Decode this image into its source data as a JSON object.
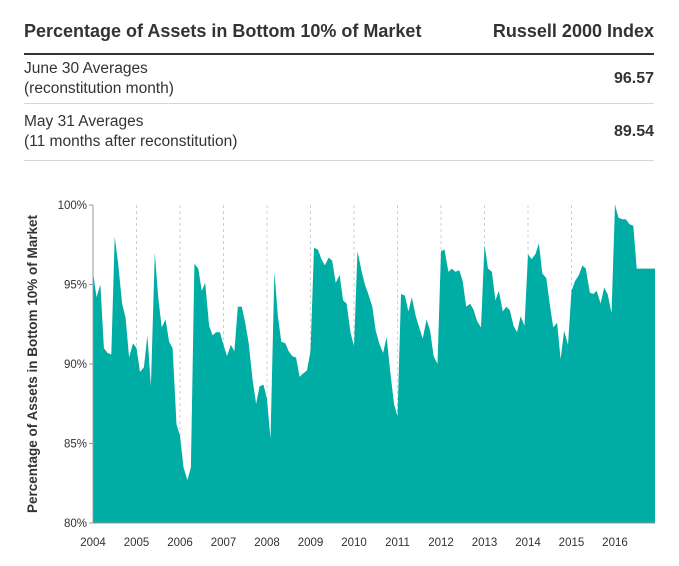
{
  "table": {
    "header_left": "Percentage of Assets in Bottom 10% of Market",
    "header_right": "Russell 2000 Index",
    "rows": [
      {
        "line1": "June 30 Averages",
        "line2": "(reconstitution month)",
        "value": "96.57"
      },
      {
        "line1": "May 31 Averages",
        "line2": "(11 months after reconstitution)",
        "value": "89.54"
      }
    ]
  },
  "colors": {
    "area": "#00ada4",
    "grid": "#d0d0d0",
    "axis": "#999999"
  },
  "chart_data": {
    "type": "area",
    "ylabel": "Percentage of Assets in Bottom 10% of Market",
    "xlabel": "",
    "ylim": [
      80,
      100
    ],
    "xlim": [
      2004.0,
      2016.92
    ],
    "yticks": [
      80,
      85,
      90,
      95,
      100
    ],
    "ytick_labels": [
      "80%",
      "85%",
      "90%",
      "95%",
      "100%"
    ],
    "xticks": [
      2004,
      2005,
      2006,
      2007,
      2008,
      2009,
      2010,
      2011,
      2012,
      2013,
      2014,
      2015,
      2016
    ],
    "xtick_labels": [
      "2004",
      "2005",
      "2006",
      "2007",
      "2008",
      "2009",
      "2010",
      "2011",
      "2012",
      "2013",
      "2014",
      "2015",
      "2016"
    ],
    "grid": true,
    "x": [
      2004.0,
      2004.08,
      2004.17,
      2004.25,
      2004.33,
      2004.42,
      2004.5,
      2004.58,
      2004.67,
      2004.75,
      2004.83,
      2004.92,
      2005.0,
      2005.08,
      2005.17,
      2005.25,
      2005.33,
      2005.42,
      2005.5,
      2005.58,
      2005.67,
      2005.75,
      2005.83,
      2005.92,
      2006.0,
      2006.08,
      2006.17,
      2006.25,
      2006.33,
      2006.42,
      2006.5,
      2006.58,
      2006.67,
      2006.75,
      2006.83,
      2006.92,
      2007.0,
      2007.08,
      2007.17,
      2007.25,
      2007.33,
      2007.42,
      2007.5,
      2007.58,
      2007.67,
      2007.75,
      2007.83,
      2007.92,
      2008.0,
      2008.08,
      2008.17,
      2008.25,
      2008.33,
      2008.42,
      2008.5,
      2008.58,
      2008.67,
      2008.75,
      2008.83,
      2008.92,
      2009.0,
      2009.08,
      2009.17,
      2009.25,
      2009.33,
      2009.42,
      2009.5,
      2009.58,
      2009.67,
      2009.75,
      2009.83,
      2009.92,
      2010.0,
      2010.08,
      2010.17,
      2010.25,
      2010.33,
      2010.42,
      2010.5,
      2010.58,
      2010.67,
      2010.75,
      2010.83,
      2010.92,
      2011.0,
      2011.08,
      2011.17,
      2011.25,
      2011.33,
      2011.42,
      2011.5,
      2011.58,
      2011.67,
      2011.75,
      2011.83,
      2011.92,
      2012.0,
      2012.08,
      2012.17,
      2012.25,
      2012.33,
      2012.42,
      2012.5,
      2012.58,
      2012.67,
      2012.75,
      2012.83,
      2012.92,
      2013.0,
      2013.08,
      2013.17,
      2013.25,
      2013.33,
      2013.42,
      2013.5,
      2013.58,
      2013.67,
      2013.75,
      2013.83,
      2013.92,
      2014.0,
      2014.08,
      2014.17,
      2014.25,
      2014.33,
      2014.42,
      2014.5,
      2014.58,
      2014.67,
      2014.75,
      2014.83,
      2014.92,
      2015.0,
      2015.08,
      2015.17,
      2015.25,
      2015.33,
      2015.42,
      2015.5,
      2015.58,
      2015.67,
      2015.75,
      2015.83,
      2015.92,
      2016.0,
      2016.08,
      2016.17,
      2016.25,
      2016.33,
      2016.42,
      2016.5,
      2016.58,
      2016.67,
      2016.75,
      2016.83,
      2016.92
    ],
    "series": [
      {
        "values": [
          95.8,
          94.2,
          95.0,
          91.0,
          90.7,
          90.6,
          98.0,
          96.3,
          93.8,
          92.9,
          90.4,
          91.3,
          91.0,
          89.5,
          89.8,
          91.8,
          88.6,
          97.0,
          94.2,
          92.3,
          92.8,
          91.4,
          91.0,
          86.2,
          85.5,
          83.5,
          82.7,
          83.5,
          96.3,
          96.0,
          94.6,
          95.1,
          92.4,
          91.8,
          92.0,
          92.0,
          91.2,
          90.5,
          91.2,
          90.8,
          93.6,
          93.6,
          92.6,
          91.3,
          89.0,
          87.5,
          88.6,
          88.7,
          87.8,
          85.3,
          95.8,
          93.0,
          91.4,
          91.3,
          90.8,
          90.5,
          90.4,
          89.2,
          89.4,
          89.6,
          90.8,
          97.3,
          97.2,
          96.6,
          96.2,
          96.7,
          96.5,
          95.1,
          95.6,
          94.0,
          93.8,
          92.0,
          91.1,
          97.1,
          95.9,
          95.0,
          94.4,
          93.6,
          92.1,
          91.3,
          90.7,
          91.7,
          89.6,
          87.5,
          86.7,
          94.4,
          94.3,
          93.3,
          94.2,
          93.0,
          92.3,
          91.6,
          92.8,
          92.1,
          90.5,
          90.0,
          97.1,
          97.2,
          95.8,
          96.0,
          95.8,
          95.9,
          95.2,
          93.6,
          93.8,
          93.4,
          92.7,
          92.3,
          97.5,
          96.0,
          95.8,
          94.0,
          94.6,
          93.3,
          93.6,
          93.4,
          92.4,
          92.0,
          93.0,
          92.4,
          96.9,
          96.6,
          96.9,
          97.6,
          95.7,
          95.4,
          93.8,
          92.3,
          92.6,
          90.3,
          92.1,
          91.2,
          94.6,
          95.2,
          95.6,
          96.2,
          96.0,
          94.5,
          94.4,
          94.6,
          93.8,
          94.8,
          94.4,
          93.2,
          100.0,
          99.2,
          99.1,
          99.1,
          98.8,
          98.7,
          96.0,
          96.0,
          96.0,
          96.0,
          96.0,
          96.0
        ]
      }
    ]
  }
}
